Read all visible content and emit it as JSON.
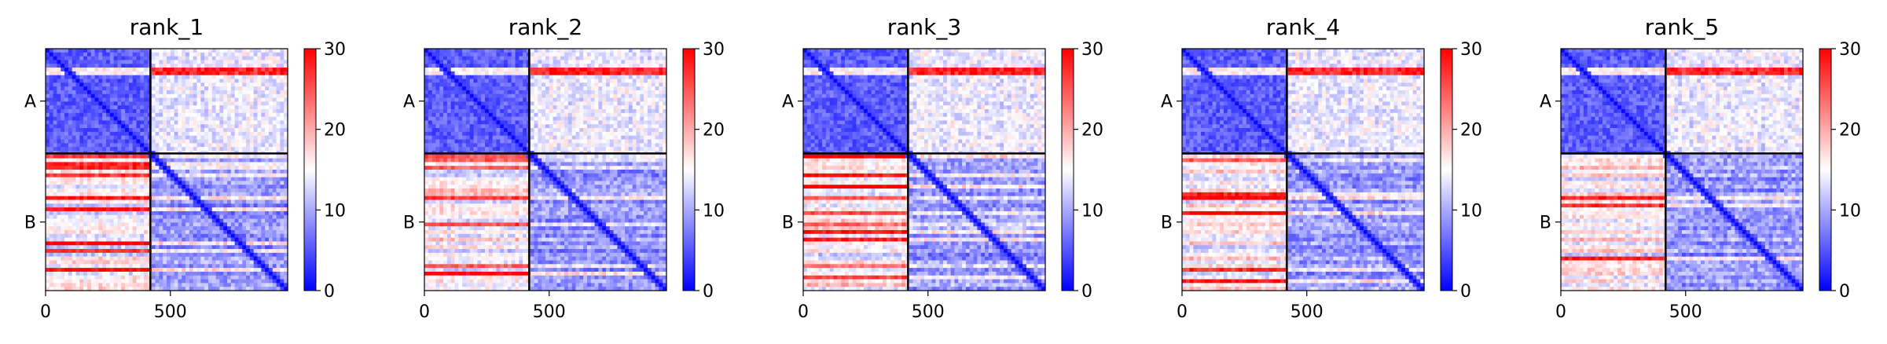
{
  "chart_data": {
    "type": "heatmap",
    "colormap": {
      "name": "bwr",
      "low": "#0000ff",
      "mid": "#ffffff",
      "high": "#ff0000"
    },
    "chain_labels": [
      "A",
      "B"
    ],
    "chain_boundary": 420,
    "x_range": [
      0,
      970
    ],
    "x_ticks": [
      0,
      500
    ],
    "color_range": [
      0,
      30
    ],
    "colorbar_ticks": [
      0,
      10,
      20,
      30
    ],
    "panels": [
      {
        "title": "rank_1"
      },
      {
        "title": "rank_2"
      },
      {
        "title": "rank_3"
      },
      {
        "title": "rank_4"
      },
      {
        "title": "rank_5"
      }
    ]
  }
}
